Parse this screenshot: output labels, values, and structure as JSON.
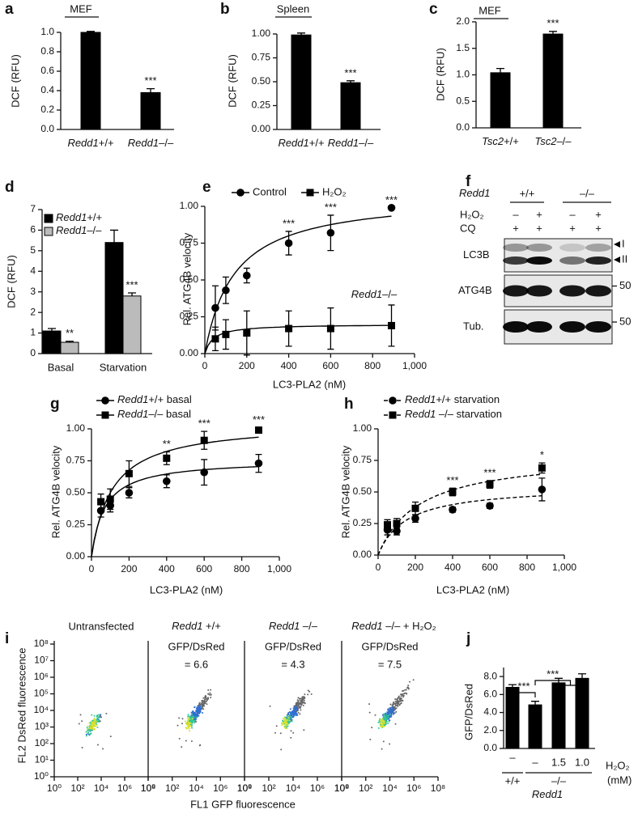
{
  "chart_data": [
    {
      "type": "bar",
      "panel": "a",
      "title": "MEF",
      "ylabel": "DCF (RFU)",
      "categories": [
        "Redd1+/+",
        "Redd1–/–"
      ],
      "values": [
        1.0,
        0.38
      ],
      "errors": [
        0.01,
        0.04
      ],
      "color": "#000000",
      "ylim": [
        0,
        1.0
      ],
      "yticks": [
        {
          "value": 0,
          "label": "0.0"
        },
        0.2,
        0.4,
        0.6,
        0.8,
        {
          "value": 1,
          "label": "1.0"
        }
      ],
      "annotations": [
        {
          "text": "***",
          "category": "Redd1–/–"
        }
      ]
    },
    {
      "type": "bar",
      "panel": "b",
      "title": "Spleen",
      "ylabel": "DCF (RFU)",
      "categories": [
        "Redd1+/+",
        "Redd1–/–"
      ],
      "values": [
        0.99,
        0.49
      ],
      "errors": [
        0.02,
        0.02
      ],
      "color": "#000000",
      "ylim": [
        0,
        1.0
      ],
      "yticks": [
        {
          "value": 0,
          "label": "0.00"
        },
        0.25,
        {
          "value": 0.5,
          "label": "0.50"
        },
        0.75,
        {
          "value": 1,
          "label": "1.00"
        }
      ],
      "annotations": [
        {
          "text": "***",
          "category": "Redd1–/–"
        }
      ]
    },
    {
      "type": "bar",
      "panel": "c",
      "title": "MEF",
      "ylabel": "DCF (RFU)",
      "categories": [
        "Tsc2+/+",
        "Tsc2–/–"
      ],
      "values": [
        1.04,
        1.77
      ],
      "errors": [
        0.08,
        0.05
      ],
      "color": "#000000",
      "ylim": [
        0,
        2.0
      ],
      "yticks": [
        {
          "value": 0,
          "label": "0.0"
        },
        0.5,
        {
          "value": 1,
          "label": "1.0"
        },
        1.5,
        {
          "value": 2,
          "label": "2.0"
        }
      ],
      "annotations": [
        {
          "text": "***",
          "category": "Tsc2–/–"
        }
      ]
    },
    {
      "type": "bar",
      "panel": "d",
      "ylabel": "DCF (RFU)",
      "categories": [
        "Basal",
        "Starvation"
      ],
      "series": [
        {
          "name": "Redd1+/+",
          "color": "#000000",
          "values": [
            1.1,
            5.4
          ],
          "errors": [
            0.12,
            0.6
          ]
        },
        {
          "name": "Redd1–/–",
          "color": "#bbbbbb",
          "values": [
            0.55,
            2.8
          ],
          "errors": [
            0.05,
            0.15
          ]
        }
      ],
      "ylim": [
        0,
        7
      ],
      "yticks": [
        0,
        1,
        2,
        3,
        4,
        5,
        6,
        7
      ],
      "annotations": [
        {
          "text": "**",
          "category": "Basal",
          "series": "Redd1–/–"
        },
        {
          "text": "***",
          "category": "Starvation",
          "series": "Redd1–/–"
        }
      ]
    },
    {
      "type": "scatter",
      "panel": "e",
      "ylabel": "Rel. ATG4B velocity",
      "xlabel": "LC3-PLA2 (nM)",
      "x": [
        50,
        100,
        200,
        400,
        600,
        890
      ],
      "series": [
        {
          "name": "Control",
          "marker": "circle",
          "values": [
            0.31,
            0.43,
            0.53,
            0.75,
            0.82,
            0.99
          ],
          "errors": [
            0.15,
            0.09,
            0.05,
            0.08,
            0.12,
            0
          ],
          "fit": {
            "vmax": 1.08,
            "km": 140
          }
        },
        {
          "name": "H₂O₂",
          "marker": "square",
          "values": [
            0.1,
            0.13,
            0.14,
            0.17,
            0.17,
            0.19
          ],
          "errors": [
            0.08,
            0.1,
            0.15,
            0.12,
            0.14,
            0.14
          ],
          "fit": {
            "vmax": 0.2,
            "km": 40
          }
        }
      ],
      "line_style": "solid",
      "xlim": [
        0,
        1000
      ],
      "xticks": [
        0,
        200,
        400,
        600,
        800,
        {
          "value": 1000,
          "label": "1,000"
        }
      ],
      "ylim": [
        0,
        1.0
      ],
      "yticks": [
        {
          "value": 0,
          "label": "0.00"
        },
        0.25,
        {
          "value": 0.5,
          "label": "0.50"
        },
        0.75,
        {
          "value": 1,
          "label": "1.00"
        }
      ],
      "note": "Redd1–/–",
      "annotations": [
        {
          "text": "***",
          "x": 400
        },
        {
          "text": "***",
          "x": 600
        },
        {
          "text": "***",
          "x": 890
        }
      ]
    },
    {
      "type": "scatter",
      "panel": "g",
      "ylabel": "Rel. ATG4B velocity",
      "xlabel": "LC3-PLA2 (nM)",
      "x": [
        50,
        100,
        200,
        400,
        600,
        890
      ],
      "series": [
        {
          "name": "Redd1+/+ basal",
          "marker": "circle",
          "values": [
            0.36,
            0.4,
            0.5,
            0.59,
            0.66,
            0.73
          ],
          "errors": [
            0.05,
            0.05,
            0.04,
            0.05,
            0.1,
            0.07
          ],
          "fit": {
            "vmax": 0.76,
            "km": 70
          }
        },
        {
          "name": "Redd1–/– basal",
          "marker": "square",
          "values": [
            0.43,
            0.45,
            0.65,
            0.77,
            0.91,
            0.99
          ],
          "errors": [
            0.06,
            0.08,
            0.1,
            0.05,
            0.07,
            0.02
          ],
          "fit": {
            "vmax": 1.05,
            "km": 110
          }
        }
      ],
      "line_style": "solid",
      "xlim": [
        0,
        1000
      ],
      "xticks": [
        0,
        200,
        400,
        600,
        800,
        {
          "value": 1000,
          "label": "1,000"
        }
      ],
      "ylim": [
        0,
        1.0
      ],
      "yticks": [
        {
          "value": 0,
          "label": "0.00"
        },
        0.25,
        {
          "value": 0.5,
          "label": "0.50"
        },
        0.75,
        {
          "value": 1,
          "label": "1.00"
        }
      ],
      "annotations": [
        {
          "text": "**",
          "x": 400
        },
        {
          "text": "***",
          "x": 600
        },
        {
          "text": "***",
          "x": 890
        }
      ]
    },
    {
      "type": "scatter",
      "panel": "h",
      "ylabel": "Rel. ATG4B velocity",
      "xlabel": "LC3-PLA2 (nM)",
      "x": [
        50,
        100,
        200,
        400,
        600,
        880
      ],
      "series": [
        {
          "name": "Redd1+/+ starvation",
          "marker": "circle",
          "values": [
            0.2,
            0.19,
            0.29,
            0.36,
            0.39,
            0.52
          ],
          "errors": [
            0.04,
            0.03,
            0.03,
            0.02,
            0.02,
            0.09
          ],
          "fit": {
            "vmax": 0.55,
            "km": 150
          }
        },
        {
          "name": "Redd1 –/– starvation",
          "marker": "square",
          "values": [
            0.24,
            0.25,
            0.37,
            0.5,
            0.56,
            0.69
          ],
          "errors": [
            0.04,
            0.04,
            0.05,
            0.03,
            0.03,
            0.04
          ],
          "fit": {
            "vmax": 0.8,
            "km": 220
          }
        }
      ],
      "line_style": "dashed",
      "xlim": [
        0,
        1000
      ],
      "xticks": [
        0,
        200,
        400,
        600,
        800,
        {
          "value": 1000,
          "label": "1,000"
        }
      ],
      "ylim": [
        0,
        1.0
      ],
      "yticks": [
        {
          "value": 0,
          "label": "0.00"
        },
        0.25,
        {
          "value": 0.5,
          "label": "0.50"
        },
        0.75,
        {
          "value": 1,
          "label": "1.00"
        }
      ],
      "annotations": [
        {
          "text": "***",
          "x": 400
        },
        {
          "text": "***",
          "x": 600
        },
        {
          "text": "*",
          "x": 880
        }
      ]
    },
    {
      "type": "bar",
      "panel": "j",
      "ylabel": "GFP/DsRed",
      "categories": [
        "–",
        "–",
        "1.5",
        "1.0"
      ],
      "values": [
        6.8,
        4.85,
        7.3,
        7.8
      ],
      "errors": [
        0.3,
        0.4,
        0.5,
        0.5
      ],
      "color": "#000000",
      "ylim": [
        0,
        9
      ],
      "yticks": [
        {
          "value": 0,
          "label": "0.0"
        },
        {
          "value": 2,
          "label": "2.0"
        },
        {
          "value": 4,
          "label": "4.0"
        },
        {
          "value": 6,
          "label": "6.0"
        },
        {
          "value": 8,
          "label": "8.0"
        }
      ],
      "brackets": [
        "***",
        "***"
      ],
      "groups": [
        "+/+",
        "–/–"
      ],
      "group_label": "Redd1",
      "condition_label": "H₂O₂",
      "unit": "(mM)"
    }
  ],
  "blot": {
    "panel": "f",
    "gene": "Redd1",
    "genotypes": [
      "+/+",
      "–/–"
    ],
    "rows": [
      {
        "label": "H₂O₂",
        "signs": [
          "–",
          "+",
          "–",
          "+"
        ]
      },
      {
        "label": "CQ",
        "signs": [
          "+",
          "+",
          "+",
          "+"
        ]
      }
    ],
    "bands": [
      {
        "label": "LC3B",
        "forms": [
          "I",
          "II"
        ]
      },
      {
        "label": "ATG4B",
        "marker": "50"
      },
      {
        "label": "Tub.",
        "marker": "50"
      }
    ]
  },
  "flow": {
    "panel": "i",
    "ylabel": "FL2 DsRed fluorescence",
    "xlabel": "FL1 GFP fluorescence",
    "log": true,
    "xlim": [
      1,
      100000000
    ],
    "ylim": [
      1,
      100000000
    ],
    "xticks": [
      {
        "value": 1,
        "label": "10⁰"
      },
      {
        "value": 100,
        "label": "10²"
      },
      {
        "value": 10000,
        "label": "10⁴"
      },
      {
        "value": 1000000,
        "label": "10⁶"
      },
      {
        "value": 100000000,
        "label": "10⁸"
      }
    ],
    "yticks": [
      {
        "value": 1,
        "label": "10⁰"
      },
      {
        "value": 10,
        "label": "10¹"
      },
      {
        "value": 100,
        "label": "10²"
      },
      {
        "value": 1000,
        "label": "10³"
      },
      {
        "value": 10000,
        "label": "10⁴"
      },
      {
        "value": 100000,
        "label": "10⁵"
      },
      {
        "value": 1000000,
        "label": "10⁶"
      },
      {
        "value": 10000000,
        "label": "10⁷"
      },
      {
        "value": 100000000,
        "label": "10⁸"
      }
    ],
    "plots": [
      {
        "title": "Untransfected"
      },
      {
        "title": "Redd1 +/+",
        "ratio_name": "GFP/DsRed",
        "ratio": "= 6.6"
      },
      {
        "title": "Redd1 –/–",
        "ratio_name": "GFP/DsRed",
        "ratio": "= 4.3"
      },
      {
        "title": "Redd1 –/– + H₂O₂",
        "ratio_name": "GFP/DsRed",
        "ratio": "= 7.5"
      }
    ]
  }
}
